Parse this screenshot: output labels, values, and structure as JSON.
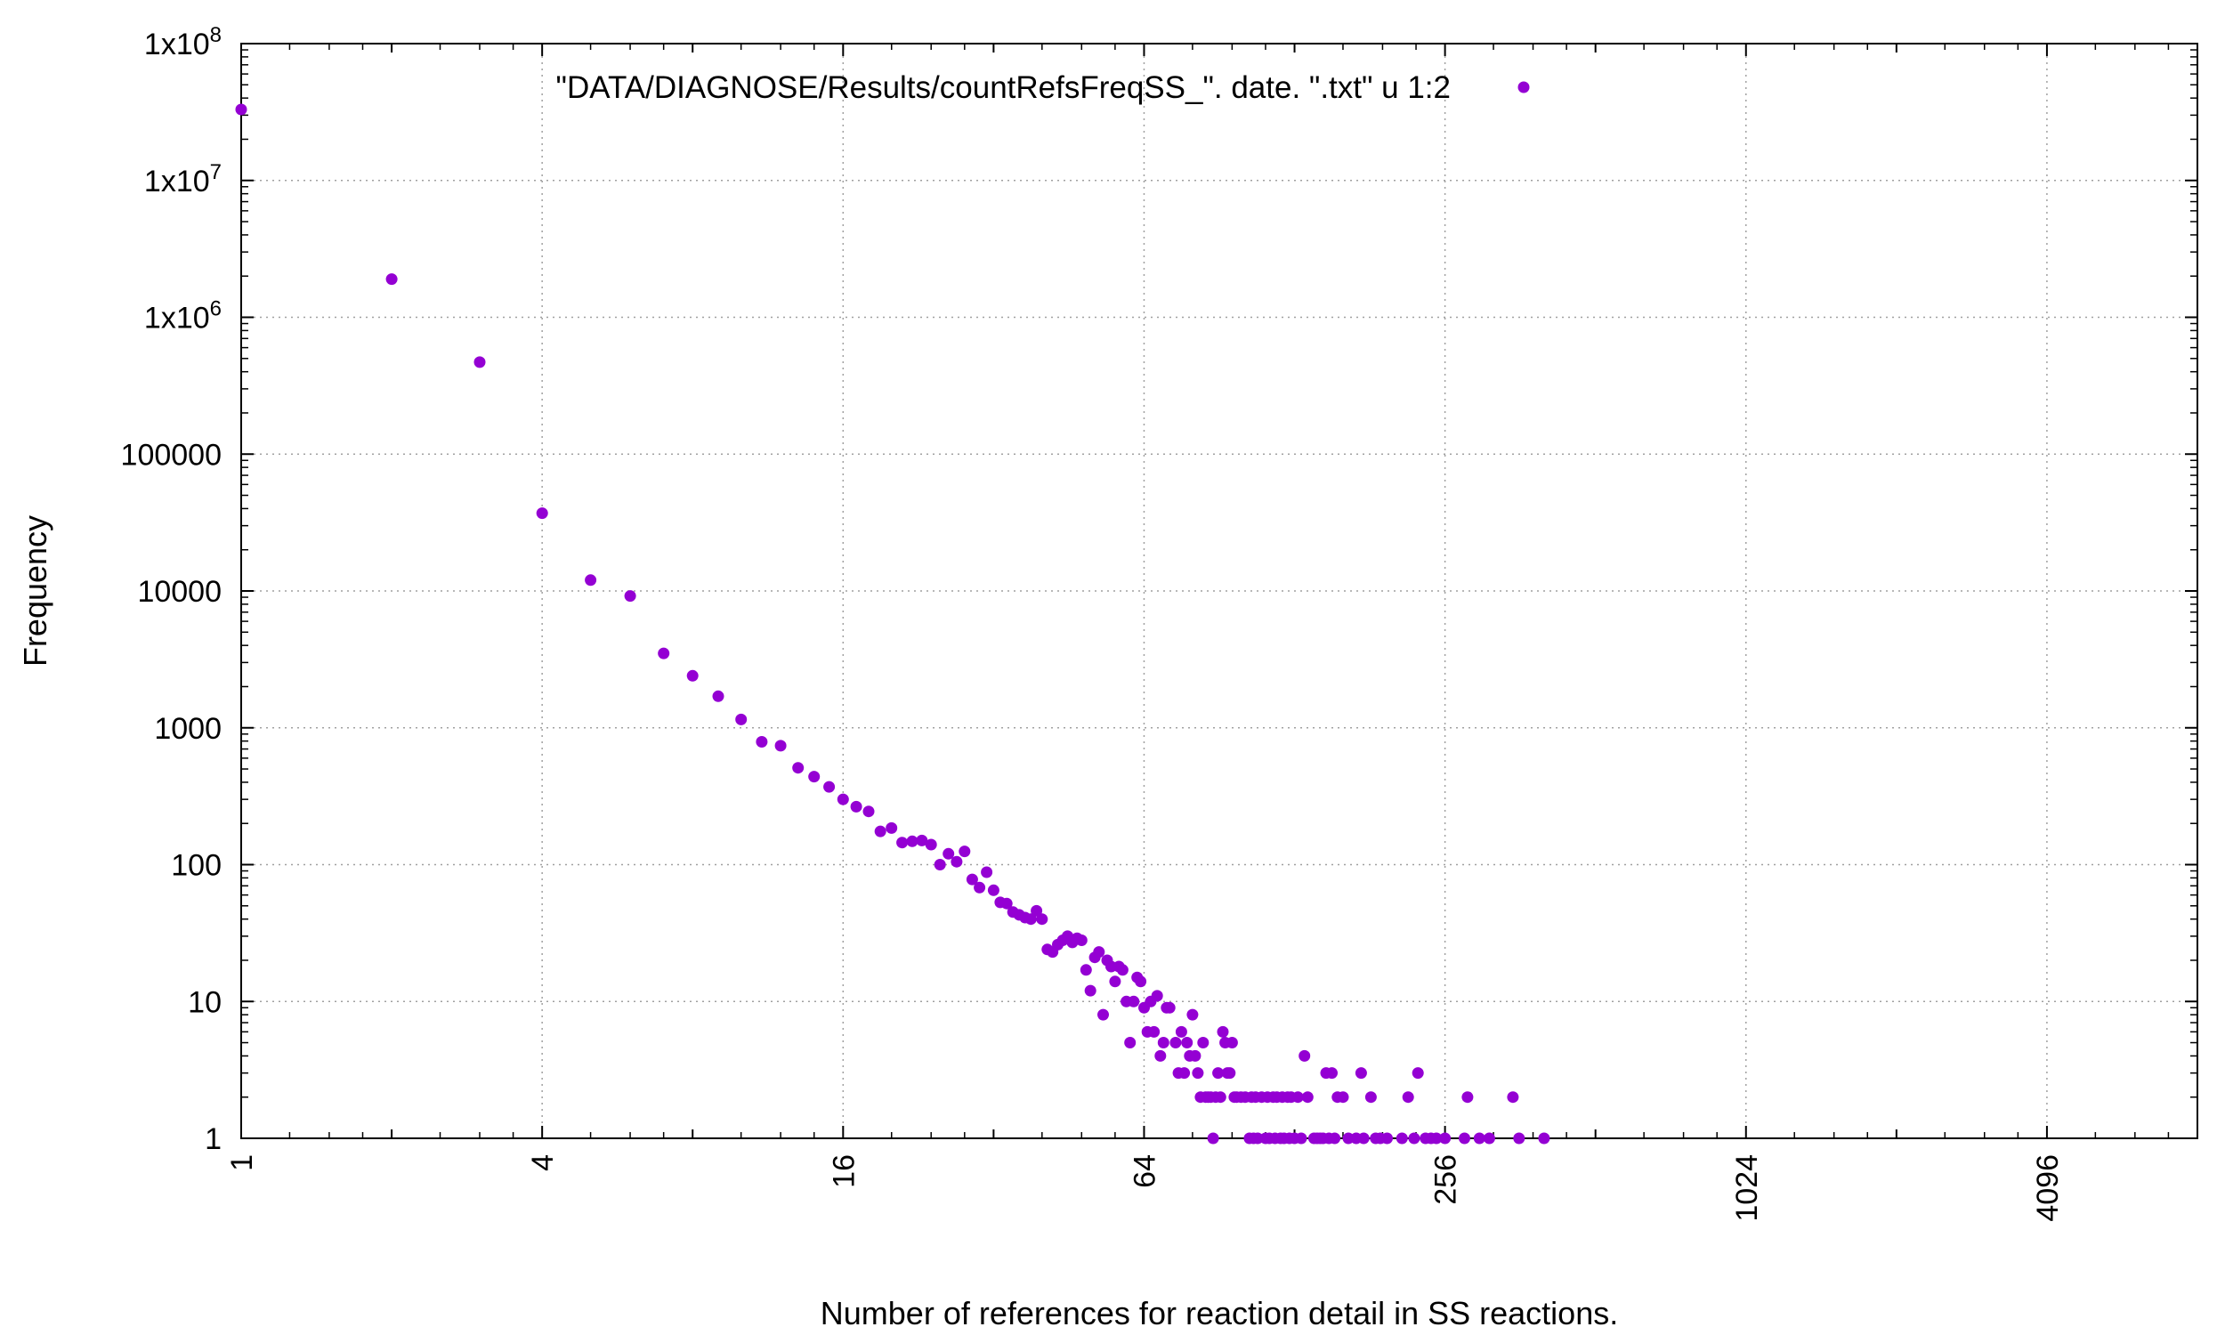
{
  "chart_data": {
    "type": "scatter",
    "title": "",
    "xlabel": "Number of references for reaction detail in SS reactions.",
    "ylabel": "Frequency",
    "xscale": "log2",
    "yscale": "log10",
    "xlim": [
      1,
      8192
    ],
    "ylim": [
      1,
      100000000
    ],
    "grid": true,
    "legend_position": "top",
    "x_tick_labels": [
      "1",
      "4",
      "16",
      "64",
      "256",
      "1024",
      "4096"
    ],
    "y_tick_labels": [
      {
        "base": "1",
        "sup": ""
      },
      {
        "base": "10",
        "sup": ""
      },
      {
        "base": "100",
        "sup": ""
      },
      {
        "base": "1000",
        "sup": ""
      },
      {
        "base": "10000",
        "sup": ""
      },
      {
        "base": "100000",
        "sup": ""
      },
      {
        "base": "1x10",
        "sup": "6"
      },
      {
        "base": "1x10",
        "sup": "7"
      },
      {
        "base": "1x10",
        "sup": "8"
      }
    ],
    "series": [
      {
        "name": "\"DATA/DIAGNOSE/Results/countRefsFreqSS_\". date. \".txt\" u 1:2",
        "color": "#9400D3",
        "points": [
          [
            1,
            33000000
          ],
          [
            2,
            1900000
          ],
          [
            3,
            470000
          ],
          [
            4,
            37000
          ],
          [
            5,
            12000
          ],
          [
            6,
            9200
          ],
          [
            7,
            3500
          ],
          [
            8,
            2400
          ],
          [
            9,
            1700
          ],
          [
            10,
            1150
          ],
          [
            11,
            790
          ],
          [
            12,
            740
          ],
          [
            13,
            510
          ],
          [
            14,
            440
          ],
          [
            15,
            370
          ],
          [
            16,
            300
          ],
          [
            17,
            265
          ],
          [
            18,
            245
          ],
          [
            19,
            175
          ],
          [
            20,
            185
          ],
          [
            21,
            145
          ],
          [
            22,
            148
          ],
          [
            23,
            150
          ],
          [
            24,
            140
          ],
          [
            25,
            100
          ],
          [
            26,
            120
          ],
          [
            27,
            105
          ],
          [
            28,
            125
          ],
          [
            29,
            78
          ],
          [
            30,
            68
          ],
          [
            31,
            88
          ],
          [
            32,
            65
          ],
          [
            33,
            53
          ],
          [
            34,
            52
          ],
          [
            35,
            45
          ],
          [
            36,
            43
          ],
          [
            37,
            41
          ],
          [
            38,
            40
          ],
          [
            39,
            46
          ],
          [
            40,
            40
          ],
          [
            41,
            24
          ],
          [
            42,
            23
          ],
          [
            43,
            26
          ],
          [
            44,
            28
          ],
          [
            45,
            30
          ],
          [
            46,
            27
          ],
          [
            47,
            29
          ],
          [
            48,
            28
          ],
          [
            49,
            17
          ],
          [
            50,
            12
          ],
          [
            51,
            21
          ],
          [
            52,
            23
          ],
          [
            53,
            8
          ],
          [
            54,
            20
          ],
          [
            55,
            18
          ],
          [
            56,
            14
          ],
          [
            57,
            18
          ],
          [
            58,
            17
          ],
          [
            59,
            10
          ],
          [
            60,
            5
          ],
          [
            61,
            10
          ],
          [
            62,
            15
          ],
          [
            63,
            14
          ],
          [
            64,
            9
          ],
          [
            65,
            6
          ],
          [
            66,
            10
          ],
          [
            67,
            6
          ],
          [
            68,
            11
          ],
          [
            69,
            4
          ],
          [
            70,
            5
          ],
          [
            71,
            9
          ],
          [
            72,
            9
          ],
          [
            74,
            5
          ],
          [
            75,
            3
          ],
          [
            76,
            6
          ],
          [
            77,
            3
          ],
          [
            78,
            5
          ],
          [
            79,
            4
          ],
          [
            80,
            8
          ],
          [
            81,
            4
          ],
          [
            82,
            3
          ],
          [
            83,
            2
          ],
          [
            84,
            5
          ],
          [
            85,
            2
          ],
          [
            86,
            2
          ],
          [
            87,
            2
          ],
          [
            88,
            1
          ],
          [
            89,
            2
          ],
          [
            90,
            3
          ],
          [
            91,
            2
          ],
          [
            92,
            6
          ],
          [
            93,
            5
          ],
          [
            94,
            3
          ],
          [
            95,
            3
          ],
          [
            96,
            5
          ],
          [
            97,
            2
          ],
          [
            98,
            2
          ],
          [
            100,
            2
          ],
          [
            102,
            2
          ],
          [
            104,
            1
          ],
          [
            105,
            2
          ],
          [
            106,
            1
          ],
          [
            107,
            2
          ],
          [
            108,
            1
          ],
          [
            110,
            2
          ],
          [
            112,
            1
          ],
          [
            113,
            2
          ],
          [
            114,
            1
          ],
          [
            116,
            2
          ],
          [
            117,
            1
          ],
          [
            118,
            2
          ],
          [
            120,
            1
          ],
          [
            121,
            2
          ],
          [
            122,
            1
          ],
          [
            124,
            2
          ],
          [
            125,
            1
          ],
          [
            126,
            2
          ],
          [
            128,
            1
          ],
          [
            130,
            2
          ],
          [
            132,
            1
          ],
          [
            134,
            4
          ],
          [
            136,
            2
          ],
          [
            140,
            1
          ],
          [
            142,
            1
          ],
          [
            144,
            1
          ],
          [
            146,
            1
          ],
          [
            148,
            3
          ],
          [
            150,
            1
          ],
          [
            152,
            3
          ],
          [
            154,
            1
          ],
          [
            156,
            2
          ],
          [
            160,
            2
          ],
          [
            164,
            1
          ],
          [
            170,
            1
          ],
          [
            174,
            3
          ],
          [
            176,
            1
          ],
          [
            182,
            2
          ],
          [
            186,
            1
          ],
          [
            190,
            1
          ],
          [
            196,
            1
          ],
          [
            210,
            1
          ],
          [
            216,
            2
          ],
          [
            222,
            1
          ],
          [
            226,
            3
          ],
          [
            234,
            1
          ],
          [
            240,
            1
          ],
          [
            246,
            1
          ],
          [
            256,
            1
          ],
          [
            280,
            1
          ],
          [
            284,
            2
          ],
          [
            300,
            1
          ],
          [
            314,
            1
          ],
          [
            350,
            2
          ],
          [
            360,
            1
          ],
          [
            404,
            1
          ]
        ]
      }
    ]
  }
}
